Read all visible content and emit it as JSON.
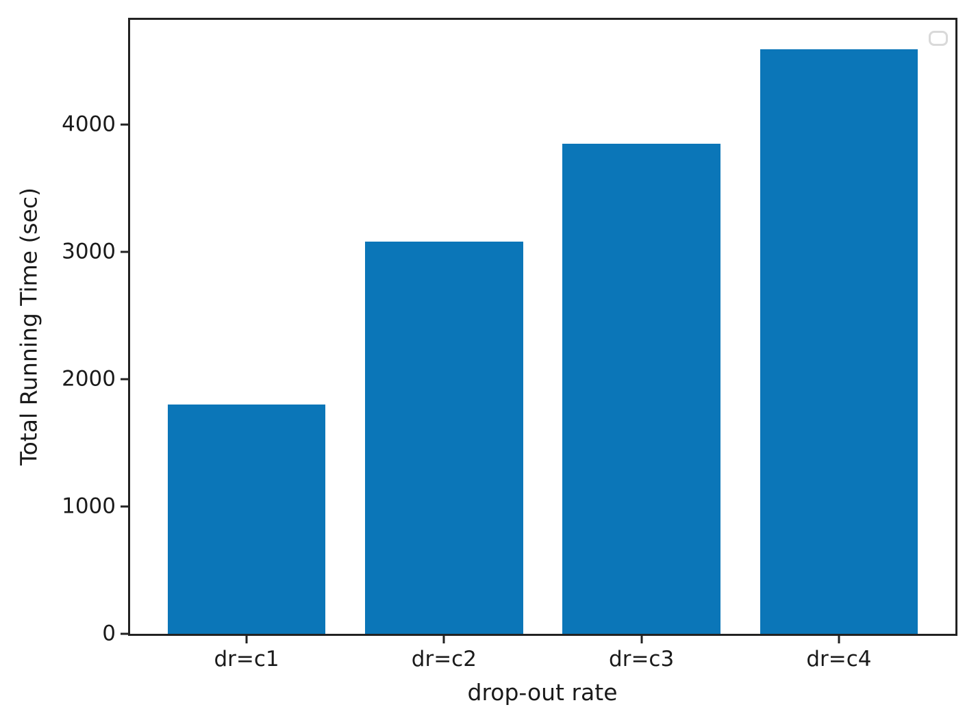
{
  "chart_data": {
    "type": "bar",
    "categories": [
      "dr=c1",
      "dr=c2",
      "dr=c3",
      "dr=c4"
    ],
    "values": [
      1800,
      3080,
      3850,
      4590
    ],
    "title": "",
    "xlabel": "drop-out rate",
    "ylabel": "Total Running Time (sec)",
    "ylim": [
      0,
      4820
    ],
    "yticks": [
      0,
      1000,
      2000,
      3000,
      4000
    ],
    "ytick_labels": [
      "0",
      "1000",
      "2000",
      "3000",
      "4000"
    ],
    "xlim": [
      -0.59,
      3.59
    ],
    "bar_width_units": 0.8,
    "bar_color": "#0b76b8",
    "axis_color": "#222222",
    "tick_label_color": "#1a1a1a",
    "grid": false,
    "legend": {
      "visible": true,
      "position": "upper right",
      "entries": []
    }
  }
}
